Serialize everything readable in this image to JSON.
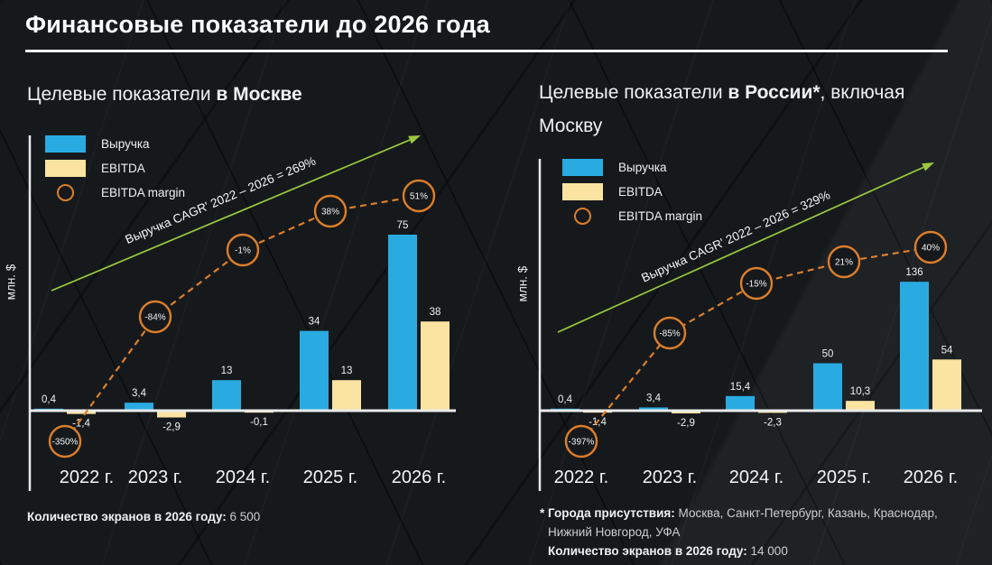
{
  "page": {
    "title": "Финансовые показатели до 2026 года"
  },
  "colors": {
    "revenue": "#29abe2",
    "ebitda": "#fbe3a1",
    "margin": "#dc7e2b",
    "green": "#9cc93d",
    "axis": "#e9eaea",
    "text": "#f2f4f5"
  },
  "chart_data": [
    {
      "type": "bar",
      "title_prefix": "Целевые показатели ",
      "title_highlight": "в Москве",
      "title_suffix": "",
      "title_line2": "",
      "ylabel": "млн. $",
      "categories": [
        "2022 г.",
        "2023 г.",
        "2024 г.",
        "2025 г.",
        "2026 г."
      ],
      "legend": [
        {
          "name": "Выручка",
          "color_key": "revenue"
        },
        {
          "name": "EBITDA",
          "color_key": "ebitda"
        },
        {
          "name": "EBITDA margin",
          "color_key": "margin"
        }
      ],
      "series": [
        {
          "name": "Выручка",
          "values": [
            0.4,
            3.4,
            13,
            34,
            75
          ],
          "labels": [
            "0,4",
            "3,4",
            "13",
            "34",
            "75"
          ]
        },
        {
          "name": "EBITDA",
          "values": [
            -1.4,
            -2.9,
            -0.1,
            13,
            38
          ],
          "labels": [
            "-1,4",
            "-2,9",
            "-0,1",
            "13",
            "38"
          ]
        }
      ],
      "margin_series": {
        "name": "EBITDA margin",
        "labels": [
          "-350%",
          "-84%",
          "-1%",
          "38%",
          "51%"
        ]
      },
      "cagr_label": "Выручка CAGR' 2022 – 2026 = 269%",
      "ylim_hint": [
        -5,
        80
      ],
      "grid": false,
      "legend_position": "top-left"
    },
    {
      "type": "bar",
      "title_prefix": "Целевые показатели ",
      "title_highlight": "в России*",
      "title_suffix": ", включая",
      "title_line2": "Москву",
      "ylabel": "млн. $",
      "categories": [
        "2022 г.",
        "2023 г.",
        "2024 г.",
        "2025 г.",
        "2026 г."
      ],
      "legend": [
        {
          "name": "Выручка",
          "color_key": "revenue"
        },
        {
          "name": "EBITDA",
          "color_key": "ebitda"
        },
        {
          "name": "EBITDA margin",
          "color_key": "margin"
        }
      ],
      "series": [
        {
          "name": "Выручка",
          "values": [
            0.4,
            3.4,
            15.4,
            50,
            136
          ],
          "labels": [
            "0,4",
            "3,4",
            "15,4",
            "50",
            "136"
          ]
        },
        {
          "name": "EBITDA",
          "values": [
            -1.4,
            -2.9,
            -2.3,
            10.3,
            54
          ],
          "labels": [
            "-1,4",
            "-2,9",
            "-2,3",
            "10,3",
            "54"
          ]
        }
      ],
      "margin_series": {
        "name": "EBITDA margin",
        "labels": [
          "-397%",
          "-85%",
          "-15%",
          "21%",
          "40%"
        ]
      },
      "cagr_label": "Выручка CAGR' 2022 – 2026 = 329%",
      "ylim_hint": [
        -5,
        145
      ],
      "grid": false,
      "legend_position": "top-left"
    }
  ],
  "footer_left": {
    "label": "Количество экранов в 2026 году:",
    "value": "6 500"
  },
  "footer_right": {
    "asterisk_label": "* Города присутствия:",
    "cities_line1": "Москва, Санкт-Петербург, Казань, Краснодар,",
    "cities_line2": "Нижний Новгород, УФА",
    "screens_label": "Количество экранов в 2026 году:",
    "screens_value": "14 000"
  }
}
